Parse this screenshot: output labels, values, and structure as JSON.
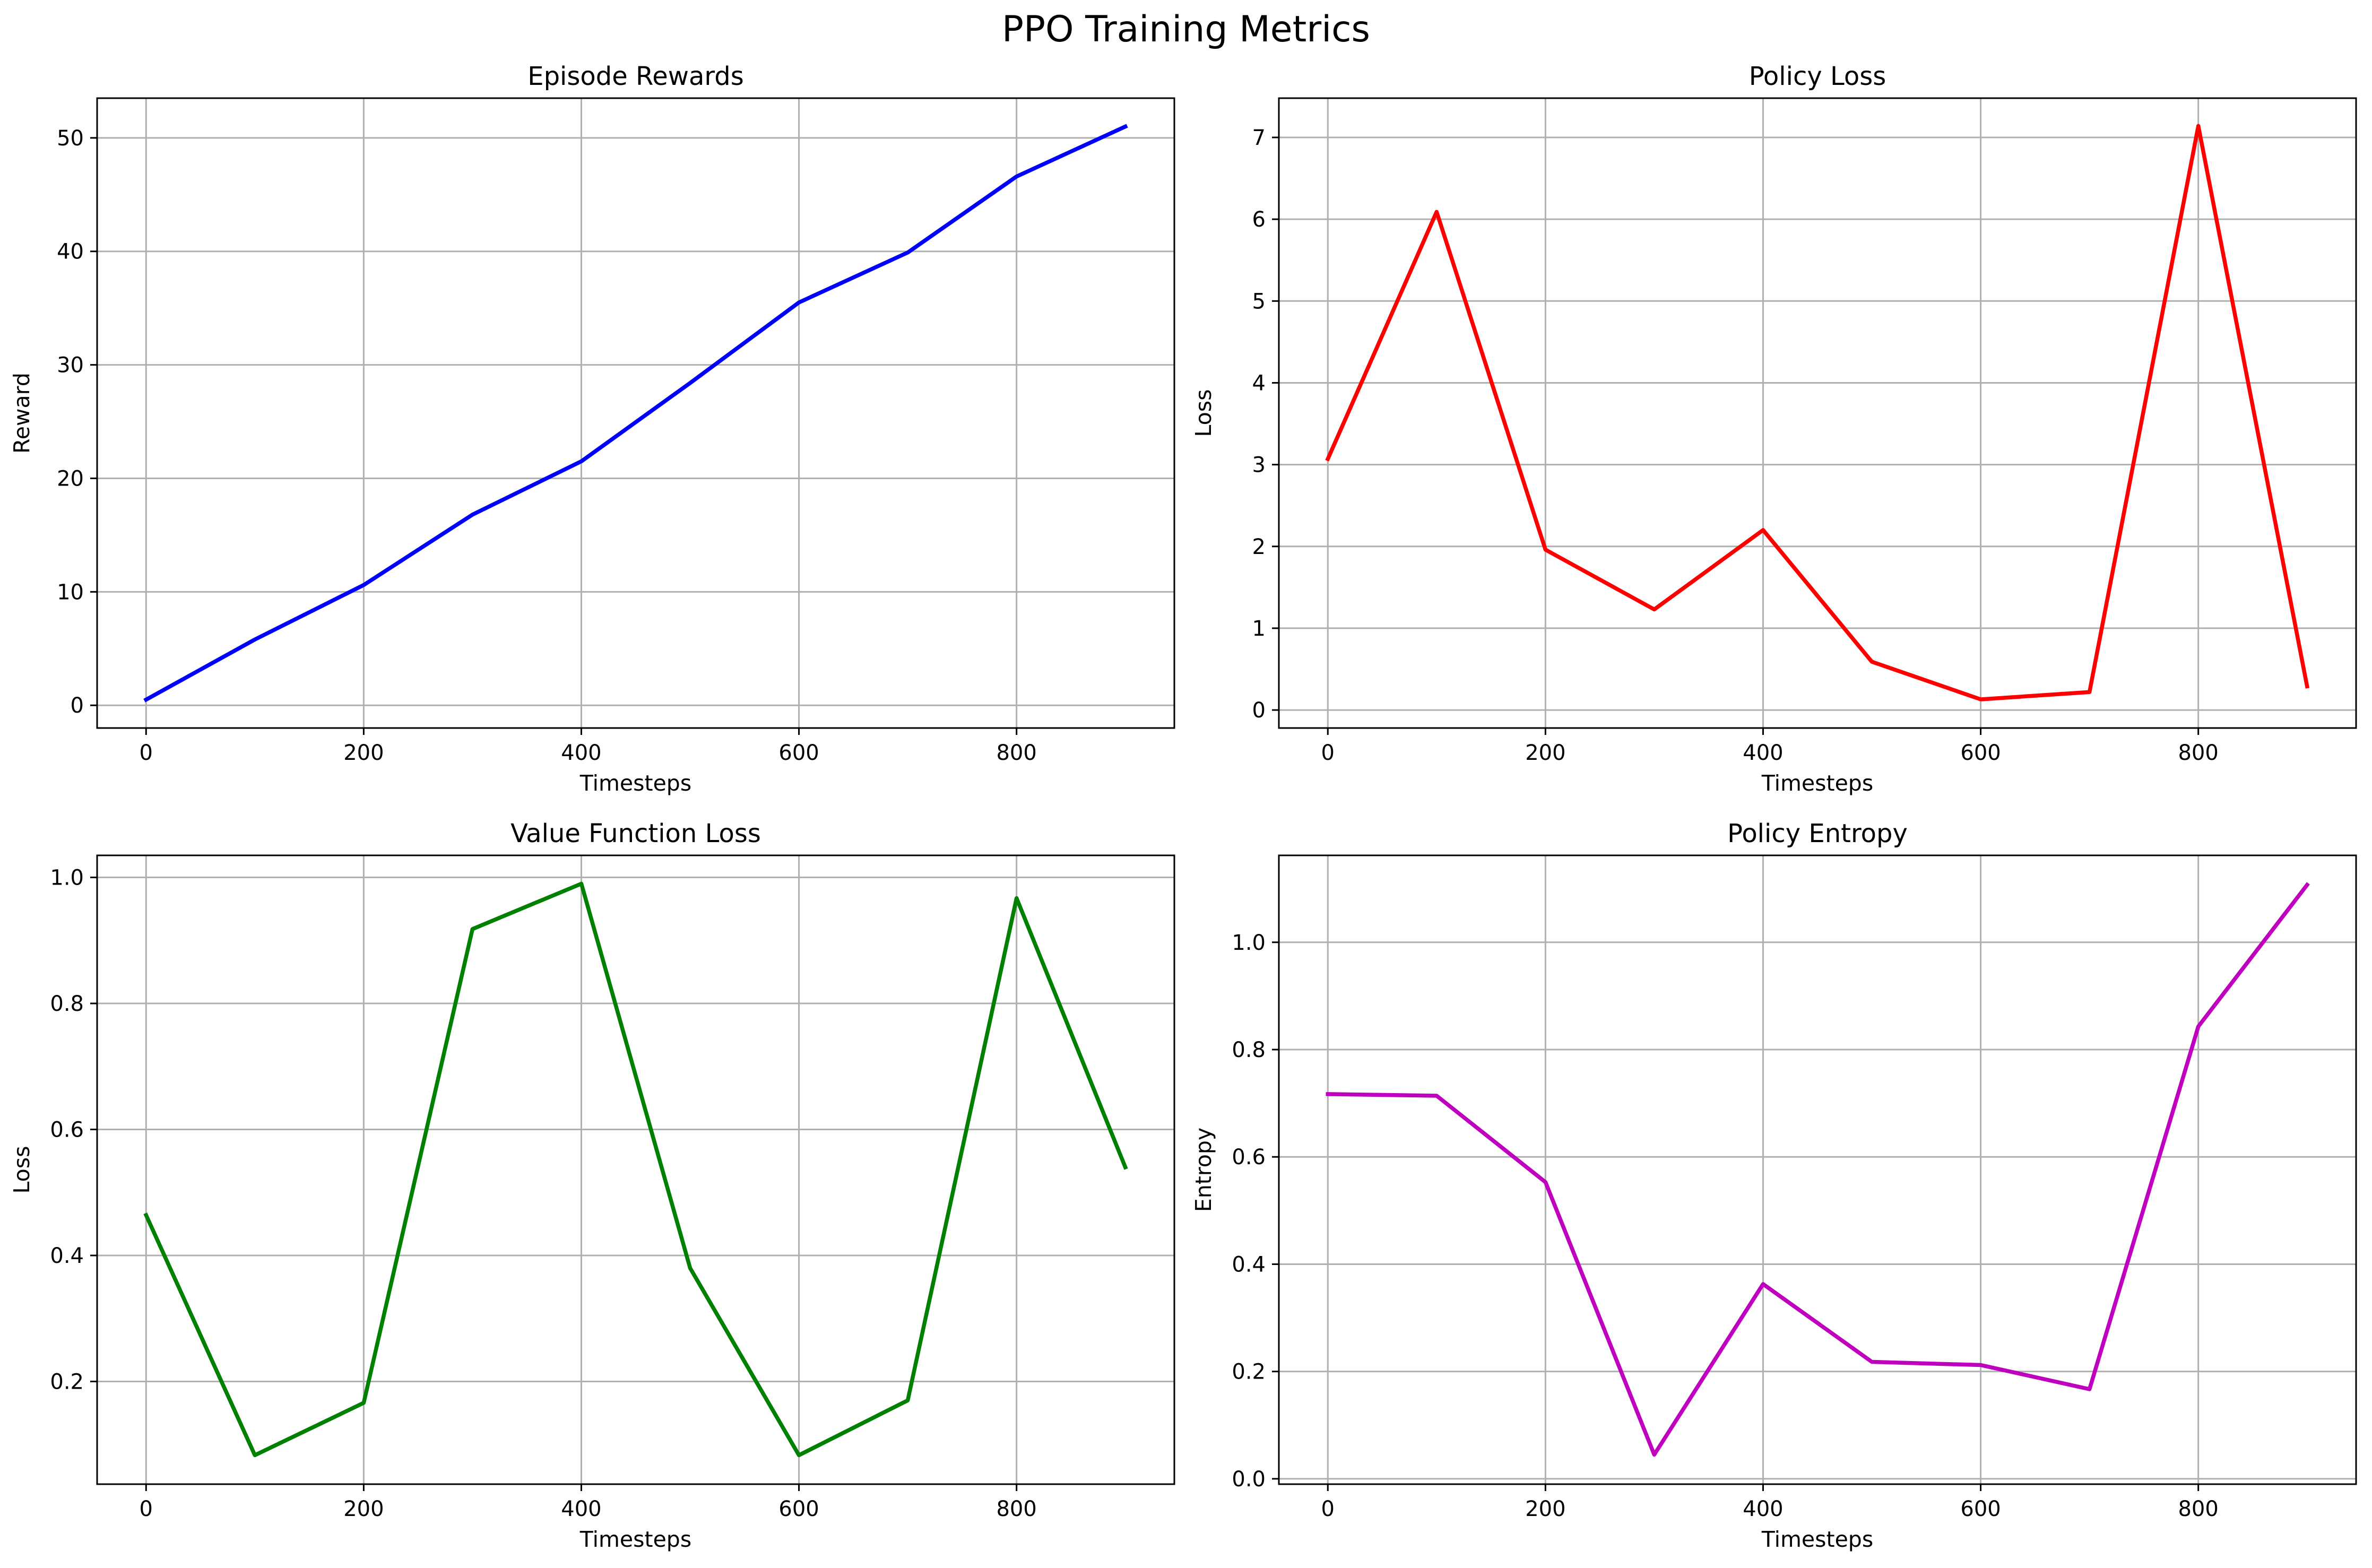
{
  "suptitle": "PPO Training Metrics",
  "chart_data": [
    {
      "type": "line",
      "title": "Episode Rewards",
      "xlabel": "Timesteps",
      "ylabel": "Reward",
      "color": "#0000ff",
      "x": [
        0,
        100,
        200,
        300,
        400,
        500,
        600,
        700,
        800,
        900
      ],
      "values": [
        0.5,
        5.8,
        10.6,
        16.8,
        21.5,
        28.4,
        35.5,
        39.9,
        46.6,
        51.0
      ],
      "xlim": [
        -45,
        945
      ],
      "ylim": [
        -2.0,
        53.5
      ],
      "xticks": [
        0,
        200,
        400,
        600,
        800
      ],
      "yticks": [
        0,
        10,
        20,
        30,
        40,
        50
      ],
      "grid": true
    },
    {
      "type": "line",
      "title": "Policy Loss",
      "xlabel": "Timesteps",
      "ylabel": "Loss",
      "color": "#ff0000",
      "x": [
        0,
        100,
        200,
        300,
        400,
        500,
        600,
        700,
        800,
        900
      ],
      "values": [
        3.07,
        6.09,
        1.96,
        1.23,
        2.2,
        0.59,
        0.13,
        0.22,
        7.14,
        0.29
      ],
      "xlim": [
        -45,
        945
      ],
      "ylim": [
        -0.22,
        7.48
      ],
      "xticks": [
        0,
        200,
        400,
        600,
        800
      ],
      "yticks": [
        0,
        1,
        2,
        3,
        4,
        5,
        6,
        7
      ],
      "grid": true
    },
    {
      "type": "line",
      "title": "Value Function Loss",
      "xlabel": "Timesteps",
      "ylabel": "Loss",
      "color": "#008000",
      "x": [
        0,
        100,
        200,
        300,
        400,
        500,
        600,
        700,
        800,
        900
      ],
      "values": [
        0.464,
        0.083,
        0.166,
        0.918,
        0.99,
        0.38,
        0.083,
        0.17,
        0.967,
        0.54
      ],
      "xlim": [
        -45,
        945
      ],
      "ylim": [
        0.037,
        1.035
      ],
      "xticks": [
        0,
        200,
        400,
        600,
        800
      ],
      "yticks": [
        0.2,
        0.4,
        0.6,
        0.8,
        1.0
      ],
      "grid": true
    },
    {
      "type": "line",
      "title": "Policy Entropy",
      "xlabel": "Timesteps",
      "ylabel": "Entropy",
      "color": "#bf00bf",
      "x": [
        0,
        100,
        200,
        300,
        400,
        500,
        600,
        700,
        800,
        900
      ],
      "values": [
        0.717,
        0.714,
        0.553,
        0.045,
        0.363,
        0.218,
        0.212,
        0.167,
        0.843,
        1.107
      ],
      "xlim": [
        -45,
        945
      ],
      "ylim": [
        -0.01,
        1.162
      ],
      "xticks": [
        0,
        200,
        400,
        600,
        800
      ],
      "yticks": [
        0.0,
        0.2,
        0.4,
        0.6,
        0.8,
        1.0
      ],
      "grid": true
    }
  ]
}
